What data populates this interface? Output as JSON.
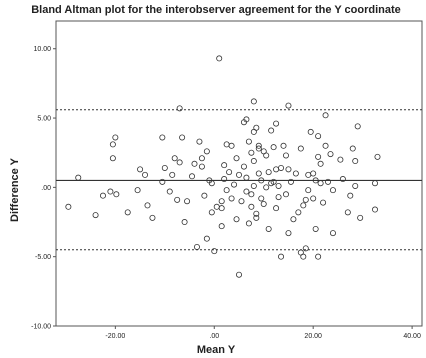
{
  "chart_data": {
    "type": "scatter",
    "title": "Bland Altman plot for the interobserver agreement for the Y coordinate",
    "xlabel": "Mean Y",
    "ylabel": "Difference Y",
    "xlim": [
      -32,
      42
    ],
    "ylim": [
      -10,
      12
    ],
    "x_ticks": [
      -20,
      0,
      20,
      40
    ],
    "x_tick_labels": [
      "-20.00",
      ".00",
      "20.00",
      "40.00"
    ],
    "y_ticks": [
      -10,
      -5,
      0,
      5,
      10
    ],
    "y_tick_labels": [
      "-10.00",
      "-5.00",
      ".00",
      "5.00",
      "10.00"
    ],
    "grid": false,
    "marker": "open-circle",
    "reference_lines": [
      {
        "y": 0.5,
        "style": "solid"
      },
      {
        "y": 5.6,
        "style": "dotted"
      },
      {
        "y": -4.5,
        "style": "dotted"
      }
    ],
    "points": [
      [
        -29.5,
        -1.4
      ],
      [
        -27.5,
        0.7
      ],
      [
        -24.0,
        -2.0
      ],
      [
        -22.5,
        -0.6
      ],
      [
        -21.0,
        -0.3
      ],
      [
        -20.5,
        2.1
      ],
      [
        -20.5,
        3.1
      ],
      [
        -20.0,
        3.6
      ],
      [
        -19.8,
        -0.5
      ],
      [
        -17.5,
        -1.8
      ],
      [
        -15.5,
        -0.2
      ],
      [
        -15.0,
        1.3
      ],
      [
        -14.0,
        0.9
      ],
      [
        -13.5,
        -1.3
      ],
      [
        -12.5,
        -2.2
      ],
      [
        -10.5,
        3.6
      ],
      [
        -10.5,
        0.4
      ],
      [
        -10.0,
        1.4
      ],
      [
        -9.0,
        -0.3
      ],
      [
        -8.5,
        0.9
      ],
      [
        -8.0,
        2.1
      ],
      [
        -7.5,
        -0.9
      ],
      [
        -7.0,
        5.7
      ],
      [
        -7.0,
        1.8
      ],
      [
        -6.5,
        3.6
      ],
      [
        -6.0,
        -2.5
      ],
      [
        -5.5,
        -1.0
      ],
      [
        -4.5,
        0.8
      ],
      [
        -4.0,
        1.7
      ],
      [
        -3.5,
        -4.3
      ],
      [
        -3.0,
        3.3
      ],
      [
        -2.5,
        2.1
      ],
      [
        -2.5,
        1.5
      ],
      [
        -2.0,
        -0.6
      ],
      [
        -1.5,
        -3.7
      ],
      [
        -1.5,
        2.6
      ],
      [
        -1.0,
        0.5
      ],
      [
        -0.5,
        0.3
      ],
      [
        -0.5,
        -1.8
      ],
      [
        0.0,
        -4.6
      ],
      [
        0.5,
        -1.4
      ],
      [
        1.0,
        9.3
      ],
      [
        1.5,
        -1.5
      ],
      [
        1.5,
        -2.8
      ],
      [
        1.5,
        -1.0
      ],
      [
        2.0,
        0.6
      ],
      [
        2.0,
        1.6
      ],
      [
        2.5,
        3.1
      ],
      [
        2.5,
        -0.2
      ],
      [
        3.0,
        1.1
      ],
      [
        3.5,
        3.0
      ],
      [
        3.5,
        -0.8
      ],
      [
        4.0,
        0.2
      ],
      [
        4.5,
        2.1
      ],
      [
        4.5,
        -2.3
      ],
      [
        5.0,
        -6.3
      ],
      [
        5.0,
        0.9
      ],
      [
        5.5,
        -1.0
      ],
      [
        6.0,
        4.7
      ],
      [
        6.0,
        1.5
      ],
      [
        6.5,
        4.9
      ],
      [
        6.5,
        0.7
      ],
      [
        6.5,
        -0.3
      ],
      [
        7.0,
        -2.6
      ],
      [
        7.0,
        3.3
      ],
      [
        7.5,
        2.5
      ],
      [
        7.5,
        -1.4
      ],
      [
        7.5,
        -0.5
      ],
      [
        8.0,
        6.2
      ],
      [
        8.0,
        4.0
      ],
      [
        8.0,
        1.9
      ],
      [
        8.0,
        0.1
      ],
      [
        8.5,
        4.3
      ],
      [
        8.5,
        -1.9
      ],
      [
        8.5,
        -2.2
      ],
      [
        9.0,
        2.8
      ],
      [
        9.0,
        1.0
      ],
      [
        9.0,
        3.0
      ],
      [
        9.5,
        -0.8
      ],
      [
        9.5,
        0.5
      ],
      [
        10.0,
        2.6
      ],
      [
        10.0,
        -1.2
      ],
      [
        10.5,
        2.3
      ],
      [
        10.5,
        0.0
      ],
      [
        11.0,
        -3.0
      ],
      [
        11.0,
        1.1
      ],
      [
        11.5,
        4.1
      ],
      [
        11.5,
        0.3
      ],
      [
        12.0,
        0.4
      ],
      [
        12.0,
        2.9
      ],
      [
        12.5,
        -1.5
      ],
      [
        12.5,
        1.3
      ],
      [
        12.5,
        4.6
      ],
      [
        13.0,
        0.1
      ],
      [
        13.0,
        -0.7
      ],
      [
        13.5,
        -5.0
      ],
      [
        13.5,
        1.4
      ],
      [
        14.0,
        3.0
      ],
      [
        14.5,
        2.3
      ],
      [
        14.5,
        -0.5
      ],
      [
        15.0,
        5.9
      ],
      [
        15.0,
        1.3
      ],
      [
        15.0,
        -3.3
      ],
      [
        15.5,
        0.4
      ],
      [
        16.0,
        -2.3
      ],
      [
        16.5,
        1.0
      ],
      [
        17.0,
        -1.8
      ],
      [
        17.5,
        -4.7
      ],
      [
        17.5,
        2.8
      ],
      [
        18.0,
        -1.3
      ],
      [
        18.0,
        -5.0
      ],
      [
        18.5,
        -4.4
      ],
      [
        18.5,
        -0.9
      ],
      [
        19.0,
        0.9
      ],
      [
        19.0,
        -0.2
      ],
      [
        19.5,
        4.0
      ],
      [
        20.0,
        -0.8
      ],
      [
        20.0,
        1.0
      ],
      [
        20.5,
        0.5
      ],
      [
        20.5,
        -3.0
      ],
      [
        21.0,
        -5.0
      ],
      [
        21.0,
        2.2
      ],
      [
        21.0,
        3.7
      ],
      [
        21.5,
        0.3
      ],
      [
        21.5,
        1.7
      ],
      [
        22.0,
        -1.1
      ],
      [
        22.5,
        3.0
      ],
      [
        22.5,
        5.2
      ],
      [
        23.0,
        0.4
      ],
      [
        23.5,
        2.4
      ],
      [
        24.0,
        -0.2
      ],
      [
        24.0,
        -3.3
      ],
      [
        25.5,
        2.0
      ],
      [
        26.0,
        0.6
      ],
      [
        27.0,
        -1.8
      ],
      [
        27.5,
        -0.6
      ],
      [
        28.0,
        2.8
      ],
      [
        28.5,
        1.9
      ],
      [
        28.5,
        0.1
      ],
      [
        29.0,
        4.4
      ],
      [
        29.5,
        -2.2
      ],
      [
        32.5,
        0.3
      ],
      [
        32.5,
        -1.6
      ],
      [
        33.0,
        2.2
      ]
    ]
  }
}
